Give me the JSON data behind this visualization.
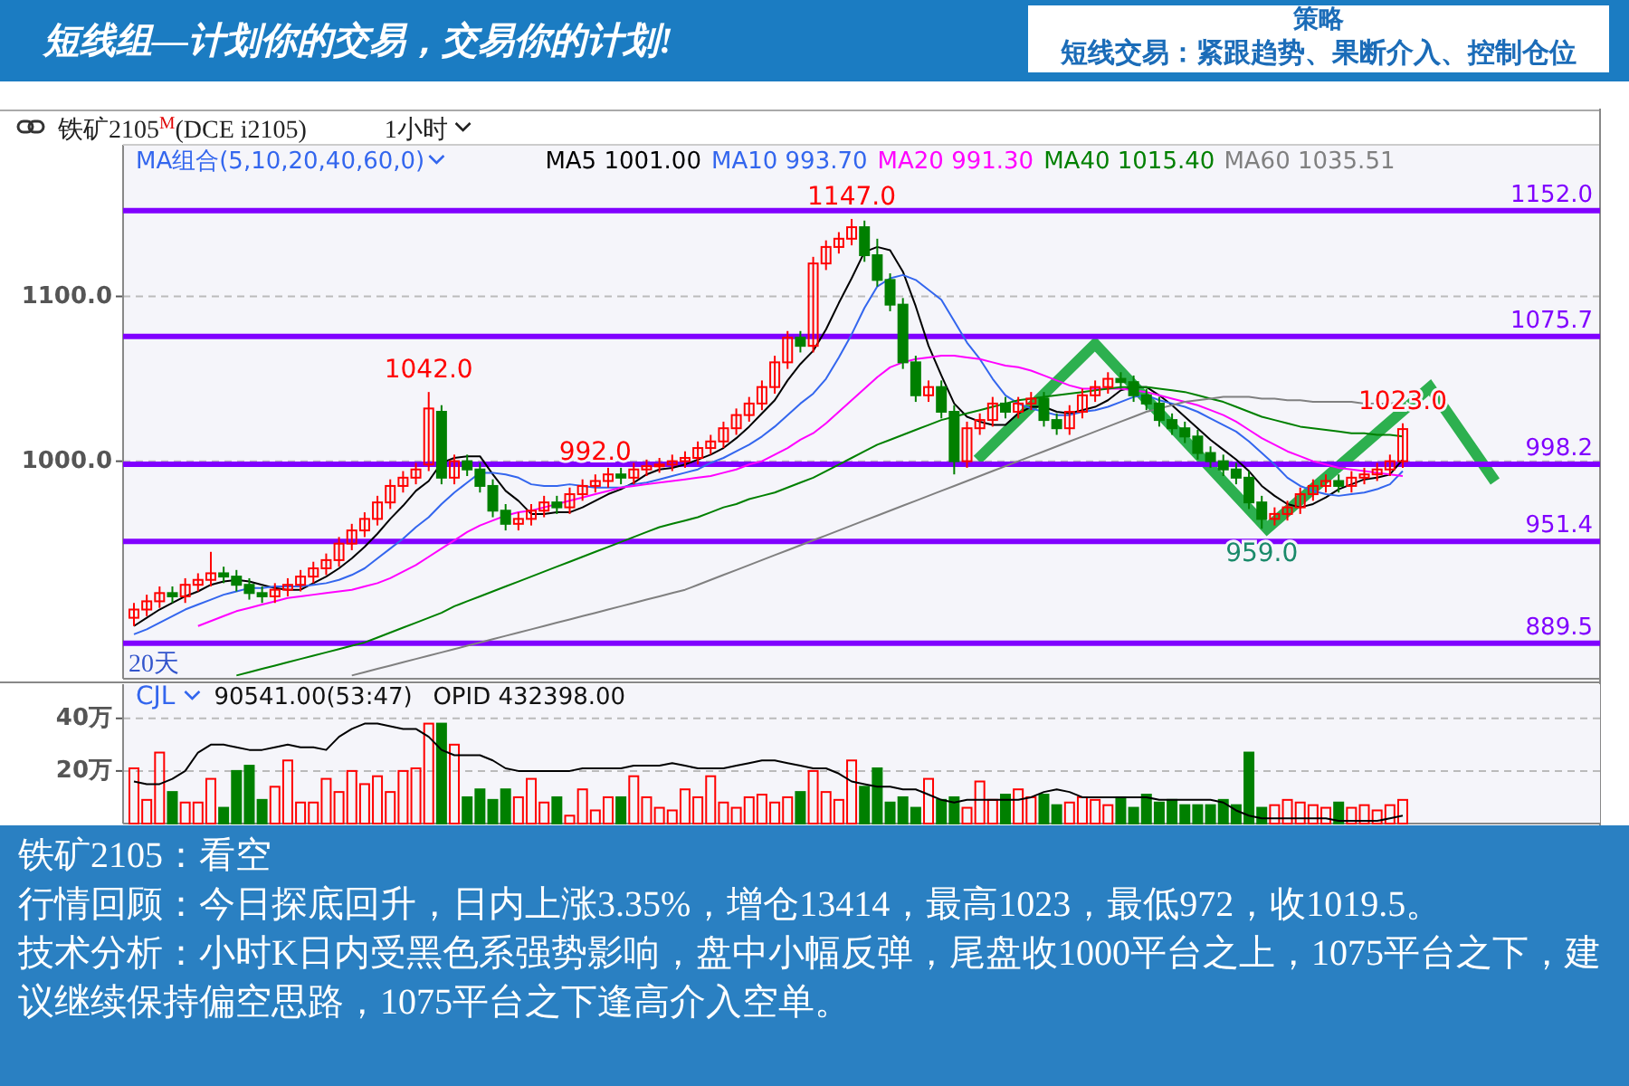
{
  "chart_data": [
    {
      "type": "other",
      "title": "短线组—计划你的交易，交易你的计划!",
      "annotations": [
        "策略",
        "短线交易：紧跟趋势、果断介入、控制仓位"
      ]
    },
    {
      "type": "candlestick",
      "title": "铁矿2105$^{M}$(DCE i2105)",
      "subtitle": "1小时",
      "legend": "top",
      "legend_title": "MA组合(5,10,20,40,60,0)",
      "grid": "y",
      "ylim": [
        868,
        1192
      ],
      "yticks": [
        {
          "value": 1000,
          "label": "1000.0"
        },
        {
          "value": 1100,
          "label": "1100.0"
        }
      ],
      "categories": [
        null,
        null,
        null,
        null,
        null,
        null,
        null,
        null,
        null,
        null,
        null,
        null,
        null,
        null,
        null,
        null,
        null,
        null,
        null,
        null,
        null,
        null,
        null,
        null,
        null,
        null,
        null,
        null,
        null,
        null,
        null,
        null,
        null,
        null,
        null,
        null,
        null,
        null,
        null,
        null,
        null,
        null,
        null,
        null,
        null,
        null,
        null,
        null,
        null,
        null,
        null,
        null,
        null,
        null,
        null,
        null,
        null,
        null,
        null,
        null,
        null,
        null,
        null,
        null,
        null,
        null,
        null,
        null,
        null,
        null,
        null,
        null,
        null,
        null,
        null,
        null,
        null,
        null,
        null,
        null,
        null,
        null,
        null,
        null,
        null,
        null,
        null,
        null,
        null,
        null,
        null,
        null,
        null,
        null,
        null,
        null,
        null,
        null,
        null,
        null
      ],
      "ohlc": [
        [
          905,
          914,
          900,
          910
        ],
        [
          910,
          919,
          906,
          915
        ],
        [
          915,
          924,
          911,
          920
        ],
        [
          920,
          924,
          914,
          918
        ],
        [
          918,
          929,
          914,
          925
        ],
        [
          925,
          932,
          921,
          928
        ],
        [
          928,
          945,
          924,
          932
        ],
        [
          932,
          936,
          926,
          930
        ],
        [
          930,
          934,
          921,
          925
        ],
        [
          925,
          929,
          916,
          920
        ],
        [
          920,
          924,
          914,
          918
        ],
        [
          918,
          926,
          914,
          922
        ],
        [
          922,
          929,
          918,
          925
        ],
        [
          925,
          934,
          921,
          930
        ],
        [
          930,
          939,
          926,
          935
        ],
        [
          935,
          944,
          931,
          940
        ],
        [
          940,
          954,
          936,
          950
        ],
        [
          950,
          962,
          946,
          958
        ],
        [
          958,
          969,
          954,
          965
        ],
        [
          965,
          979,
          961,
          975
        ],
        [
          975,
          989,
          971,
          985
        ],
        [
          985,
          994,
          981,
          990
        ],
        [
          990,
          999,
          986,
          995
        ],
        [
          998,
          1042,
          994,
          1032
        ],
        [
          1030,
          1034,
          986,
          990
        ],
        [
          990,
          1004,
          986,
          1000
        ],
        [
          1000,
          1004,
          991,
          995
        ],
        [
          995,
          999,
          981,
          985
        ],
        [
          985,
          989,
          966,
          970
        ],
        [
          970,
          974,
          958,
          962
        ],
        [
          962,
          969,
          958,
          965
        ],
        [
          965,
          974,
          961,
          970
        ],
        [
          970,
          979,
          966,
          975
        ],
        [
          975,
          979,
          968,
          972
        ],
        [
          972,
          984,
          968,
          980
        ],
        [
          980,
          989,
          976,
          985
        ],
        [
          985,
          992,
          981,
          988
        ],
        [
          988,
          996,
          984,
          992
        ],
        [
          992,
          996,
          986,
          990
        ],
        [
          990,
          999,
          986,
          995
        ],
        [
          995,
          1001,
          991,
          997
        ],
        [
          997,
          1002,
          993,
          998
        ],
        [
          998,
          1004,
          994,
          1000
        ],
        [
          1000,
          1006,
          996,
          1002
        ],
        [
          1002,
          1012,
          998,
          1008
        ],
        [
          1008,
          1016,
          1004,
          1012
        ],
        [
          1012,
          1024,
          1008,
          1020
        ],
        [
          1020,
          1032,
          1016,
          1028
        ],
        [
          1028,
          1039,
          1024,
          1035
        ],
        [
          1035,
          1049,
          1031,
          1045
        ],
        [
          1045,
          1064,
          1041,
          1060
        ],
        [
          1060,
          1079,
          1056,
          1075
        ],
        [
          1075,
          1079,
          1066,
          1070
        ],
        [
          1070,
          1124,
          1066,
          1120
        ],
        [
          1120,
          1134,
          1116,
          1130
        ],
        [
          1130,
          1139,
          1126,
          1135
        ],
        [
          1135,
          1147,
          1131,
          1142
        ],
        [
          1142,
          1146,
          1121,
          1125
        ],
        [
          1125,
          1135,
          1106,
          1110
        ],
        [
          1110,
          1114,
          1091,
          1095
        ],
        [
          1095,
          1099,
          1056,
          1060
        ],
        [
          1060,
          1064,
          1036,
          1040
        ],
        [
          1040,
          1049,
          1036,
          1045
        ],
        [
          1045,
          1049,
          1026,
          1030
        ],
        [
          1030,
          1034,
          992,
          1000
        ],
        [
          1000,
          1024,
          996,
          1020
        ],
        [
          1020,
          1029,
          1016,
          1025
        ],
        [
          1025,
          1039,
          1021,
          1035
        ],
        [
          1035,
          1039,
          1026,
          1030
        ],
        [
          1030,
          1039,
          1026,
          1035
        ],
        [
          1035,
          1042,
          1031,
          1038
        ],
        [
          1038,
          1042,
          1021,
          1025
        ],
        [
          1025,
          1029,
          1016,
          1020
        ],
        [
          1020,
          1034,
          1016,
          1030
        ],
        [
          1030,
          1044,
          1026,
          1040
        ],
        [
          1040,
          1049,
          1036,
          1045
        ],
        [
          1045,
          1054,
          1041,
          1050
        ],
        [
          1050,
          1054,
          1044,
          1048
        ],
        [
          1048,
          1052,
          1036,
          1040
        ],
        [
          1040,
          1044,
          1031,
          1035
        ],
        [
          1035,
          1039,
          1021,
          1025
        ],
        [
          1025,
          1029,
          1016,
          1020
        ],
        [
          1020,
          1024,
          1011,
          1015
        ],
        [
          1015,
          1019,
          1001,
          1005
        ],
        [
          1005,
          1009,
          996,
          1000
        ],
        [
          1000,
          1004,
          991,
          995
        ],
        [
          995,
          999,
          986,
          990
        ],
        [
          990,
          994,
          971,
          975
        ],
        [
          975,
          979,
          959,
          965
        ],
        [
          965,
          972,
          961,
          968
        ],
        [
          968,
          976,
          964,
          972
        ],
        [
          972,
          984,
          968,
          980
        ],
        [
          980,
          989,
          976,
          985
        ],
        [
          985,
          992,
          981,
          988
        ],
        [
          988,
          992,
          981,
          985
        ],
        [
          985,
          994,
          981,
          990
        ],
        [
          990,
          996,
          986,
          992
        ],
        [
          992,
          999,
          988,
          995
        ],
        [
          995,
          1004,
          991,
          1000
        ],
        [
          1000,
          1023,
          996,
          1019.5
        ]
      ],
      "colors": [
        "#ff0000",
        "#ff0000",
        "#ff0000",
        "#008000",
        "#ff0000",
        "#ff0000",
        "#ff0000",
        "#008000",
        "#008000",
        "#008000",
        "#008000",
        "#ff0000",
        "#ff0000",
        "#ff0000",
        "#ff0000",
        "#ff0000",
        "#ff0000",
        "#ff0000",
        "#ff0000",
        "#ff0000",
        "#ff0000",
        "#ff0000",
        "#ff0000",
        "#ff0000",
        "#008000",
        "#ff0000",
        "#008000",
        "#008000",
        "#008000",
        "#008000",
        "#ff0000",
        "#ff0000",
        "#ff0000",
        "#008000",
        "#ff0000",
        "#ff0000",
        "#ff0000",
        "#ff0000",
        "#008000",
        "#ff0000",
        "#ff0000",
        "#ff0000",
        "#ff0000",
        "#ff0000",
        "#ff0000",
        "#ff0000",
        "#ff0000",
        "#ff0000",
        "#ff0000",
        "#ff0000",
        "#ff0000",
        "#ff0000",
        "#008000",
        "#ff0000",
        "#ff0000",
        "#ff0000",
        "#ff0000",
        "#008000",
        "#008000",
        "#008000",
        "#008000",
        "#008000",
        "#ff0000",
        "#008000",
        "#008000",
        "#ff0000",
        "#ff0000",
        "#ff0000",
        "#008000",
        "#ff0000",
        "#ff0000",
        "#008000",
        "#008000",
        "#ff0000",
        "#ff0000",
        "#ff0000",
        "#ff0000",
        "#008000",
        "#008000",
        "#008000",
        "#008000",
        "#008000",
        "#008000",
        "#008000",
        "#008000",
        "#008000",
        "#008000",
        "#008000",
        "#008000",
        "#ff0000",
        "#ff0000",
        "#ff0000",
        "#ff0000",
        "#ff0000",
        "#008000",
        "#ff0000",
        "#ff0000",
        "#ff0000",
        "#ff0000",
        "#ff0000"
      ],
      "series": [
        {
          "type": "line",
          "name": "MA5 1001.00",
          "color": "#000000",
          "values": [
            900,
            905,
            910,
            914,
            918,
            921,
            925,
            927,
            928,
            927,
            925,
            923,
            922,
            922,
            926,
            930,
            935,
            941,
            948,
            956,
            965,
            973,
            982,
            988,
            999,
            1002,
            1003,
            1003,
            992,
            982,
            976,
            968,
            968,
            969,
            969,
            972,
            976,
            980,
            983,
            987,
            992,
            995,
            996,
            998,
            1001,
            1004,
            1008,
            1014,
            1021,
            1029,
            1037,
            1049,
            1059,
            1067,
            1080,
            1096,
            1111,
            1127,
            1130,
            1128,
            1115,
            1094,
            1070,
            1052,
            1035,
            1027,
            1024,
            1022,
            1022,
            1029,
            1033,
            1033,
            1030,
            1029,
            1031,
            1033,
            1037,
            1043,
            1045,
            1045,
            1040,
            1034,
            1027,
            1020,
            1013,
            1007,
            1001,
            994,
            985,
            979,
            974,
            972,
            974,
            978,
            983,
            986,
            989,
            990,
            992,
            1001
          ]
        },
        {
          "type": "line",
          "name": "MA10 993.70",
          "color": "#3366ee",
          "values": [
            895,
            898,
            902,
            906,
            910,
            913,
            916,
            919,
            921,
            923,
            923,
            924,
            924,
            924,
            925,
            926,
            928,
            931,
            935,
            941,
            947,
            953,
            960,
            966,
            974,
            981,
            987,
            993,
            993,
            992,
            990,
            986,
            985,
            985,
            986,
            985,
            984,
            984,
            984,
            986,
            987,
            989,
            991,
            993,
            995,
            999,
            1002,
            1006,
            1010,
            1015,
            1021,
            1028,
            1035,
            1041,
            1050,
            1063,
            1077,
            1093,
            1106,
            1111,
            1113,
            1110,
            1104,
            1098,
            1085,
            1072,
            1062,
            1050,
            1040,
            1035,
            1032,
            1030,
            1028,
            1028,
            1030,
            1031,
            1033,
            1036,
            1039,
            1040,
            1037,
            1035,
            1033,
            1030,
            1026,
            1022,
            1018,
            1012,
            1005,
            998,
            990,
            985,
            982,
            980,
            979,
            980,
            981,
            983,
            986,
            994
          ]
        },
        {
          "type": "line",
          "name": "MA20 991.30",
          "color": "#ff00ff",
          "values": [
            null,
            null,
            null,
            null,
            null,
            900,
            903,
            906,
            909,
            911,
            913,
            915,
            917,
            918,
            919,
            920,
            921,
            922,
            924,
            926,
            929,
            933,
            937,
            942,
            947,
            952,
            957,
            961,
            964,
            967,
            969,
            970,
            972,
            974,
            976,
            978,
            980,
            982,
            984,
            985,
            986,
            987,
            988,
            989,
            990,
            991,
            993,
            995,
            998,
            1000,
            1004,
            1008,
            1013,
            1017,
            1023,
            1030,
            1037,
            1044,
            1051,
            1057,
            1060,
            1062,
            1063,
            1064,
            1064,
            1063,
            1062,
            1060,
            1058,
            1057,
            1055,
            1052,
            1049,
            1046,
            1044,
            1044,
            1044,
            1044,
            1043,
            1042,
            1040,
            1038,
            1036,
            1034,
            1031,
            1028,
            1024,
            1019,
            1014,
            1010,
            1006,
            1003,
            1000,
            998,
            996,
            995,
            994,
            993,
            992,
            991
          ]
        },
        {
          "type": "line",
          "name": "MA40 1015.40",
          "color": "#008000",
          "values": [
            null,
            null,
            null,
            null,
            null,
            null,
            null,
            null,
            870,
            872,
            874,
            876,
            878,
            880,
            882,
            884,
            886,
            888,
            890,
            893,
            896,
            899,
            902,
            905,
            908,
            912,
            915,
            918,
            921,
            924,
            927,
            930,
            933,
            936,
            939,
            942,
            945,
            948,
            951,
            954,
            957,
            960,
            962,
            964,
            966,
            969,
            972,
            974,
            977,
            979,
            981,
            984,
            987,
            990,
            994,
            998,
            1002,
            1006,
            1010,
            1013,
            1016,
            1019,
            1022,
            1025,
            1027,
            1029,
            1031,
            1033,
            1035,
            1037,
            1038,
            1039,
            1040,
            1041,
            1042,
            1043,
            1044,
            1045,
            1045,
            1045,
            1044,
            1043,
            1042,
            1040,
            1038,
            1036,
            1033,
            1030,
            1027,
            1025,
            1023,
            1021,
            1020,
            1019,
            1018,
            1017,
            1017,
            1016,
            1016,
            1015
          ]
        },
        {
          "type": "line",
          "name": "MA60 1035.51",
          "color": "#808080",
          "values": [
            null,
            null,
            null,
            null,
            null,
            null,
            null,
            null,
            null,
            null,
            null,
            null,
            null,
            null,
            null,
            null,
            null,
            870,
            872,
            874,
            876,
            878,
            880,
            882,
            884,
            886,
            888,
            890,
            892,
            894,
            896,
            898,
            900,
            902,
            904,
            906,
            908,
            910,
            912,
            914,
            916,
            918,
            920,
            922,
            925,
            928,
            931,
            934,
            937,
            940,
            943,
            946,
            949,
            952,
            955,
            958,
            961,
            964,
            967,
            970,
            973,
            976,
            979,
            982,
            985,
            988,
            991,
            994,
            997,
            1000,
            1003,
            1006,
            1009,
            1012,
            1015,
            1018,
            1021,
            1024,
            1027,
            1030,
            1032,
            1034,
            1036,
            1037,
            1038,
            1039,
            1039,
            1039,
            1038,
            1038,
            1037,
            1037,
            1036,
            1036,
            1036,
            1036,
            1035,
            1035,
            1035,
            1036
          ]
        }
      ],
      "ref_lines": [
        {
          "axis": "y",
          "value": 1152,
          "label": "1152.0",
          "color": "#8000ff"
        },
        {
          "axis": "y",
          "value": 1075.7,
          "label": "1075.7",
          "color": "#8000ff"
        },
        {
          "axis": "y",
          "value": 998.2,
          "label": "998.2",
          "color": "#8000ff"
        },
        {
          "axis": "y",
          "value": 951.4,
          "label": "951.4",
          "color": "#8000ff"
        },
        {
          "axis": "y",
          "value": 889.5,
          "label": "889.5",
          "color": "#8000ff"
        }
      ],
      "annotations": [
        {
          "text": "1147.0",
          "y": 1147
        },
        {
          "text": "1042.0",
          "y": 1042
        },
        {
          "text": "992.0",
          "y": 992
        },
        {
          "text": "959.0",
          "y": 959
        },
        {
          "text": "1023.0",
          "y": 1023
        },
        "20天"
      ]
    },
    {
      "type": "bar",
      "title": "CJL",
      "annotations": [
        "90541.00(53:47)",
        "OPID 432398.00"
      ],
      "grid": "y",
      "ylim": [
        0,
        53
      ],
      "yticks": [
        {
          "value": 20,
          "label": "20万"
        },
        {
          "value": 40,
          "label": "40万"
        }
      ],
      "categories": [
        null,
        null,
        null,
        null,
        null,
        null,
        null,
        null,
        null,
        null,
        null,
        null,
        null,
        null,
        null,
        null,
        null,
        null,
        null,
        null,
        null,
        null,
        null,
        null,
        null,
        null,
        null,
        null,
        null,
        null,
        null,
        null,
        null,
        null,
        null,
        null,
        null,
        null,
        null,
        null,
        null,
        null,
        null,
        null,
        null,
        null,
        null,
        null,
        null,
        null,
        null,
        null,
        null,
        null,
        null,
        null,
        null,
        null,
        null,
        null,
        null,
        null,
        null,
        null,
        null,
        null,
        null,
        null,
        null,
        null,
        null,
        null,
        null,
        null,
        null,
        null,
        null,
        null,
        null,
        null,
        null,
        null,
        null,
        null,
        null,
        null,
        null,
        null,
        null,
        null,
        null,
        null,
        null,
        null,
        null,
        null,
        null,
        null,
        null,
        null
      ],
      "series": [
        {
          "type": "bar",
          "colors": [
            "#ff0000",
            "#ff0000",
            "#ff0000",
            "#008000",
            "#ff0000",
            "#ff0000",
            "#ff0000",
            "#008000",
            "#008000",
            "#008000",
            "#008000",
            "#ff0000",
            "#ff0000",
            "#ff0000",
            "#ff0000",
            "#ff0000",
            "#ff0000",
            "#ff0000",
            "#ff0000",
            "#ff0000",
            "#ff0000",
            "#ff0000",
            "#ff0000",
            "#ff0000",
            "#008000",
            "#ff0000",
            "#008000",
            "#008000",
            "#008000",
            "#008000",
            "#ff0000",
            "#ff0000",
            "#ff0000",
            "#008000",
            "#ff0000",
            "#ff0000",
            "#ff0000",
            "#ff0000",
            "#008000",
            "#ff0000",
            "#ff0000",
            "#ff0000",
            "#ff0000",
            "#ff0000",
            "#ff0000",
            "#ff0000",
            "#ff0000",
            "#ff0000",
            "#ff0000",
            "#ff0000",
            "#ff0000",
            "#ff0000",
            "#008000",
            "#ff0000",
            "#ff0000",
            "#ff0000",
            "#ff0000",
            "#008000",
            "#008000",
            "#008000",
            "#008000",
            "#008000",
            "#ff0000",
            "#008000",
            "#008000",
            "#ff0000",
            "#ff0000",
            "#ff0000",
            "#008000",
            "#ff0000",
            "#ff0000",
            "#008000",
            "#008000",
            "#ff0000",
            "#ff0000",
            "#ff0000",
            "#ff0000",
            "#008000",
            "#008000",
            "#008000",
            "#008000",
            "#008000",
            "#008000",
            "#008000",
            "#008000",
            "#008000",
            "#008000",
            "#008000",
            "#008000",
            "#ff0000",
            "#ff0000",
            "#ff0000",
            "#ff0000",
            "#ff0000",
            "#008000",
            "#ff0000",
            "#ff0000",
            "#ff0000",
            "#ff0000",
            "#ff0000"
          ],
          "values": [
            21,
            9,
            27,
            12,
            8,
            8,
            17,
            6,
            20,
            22,
            9,
            14,
            24,
            8,
            8,
            17,
            12,
            20,
            15,
            18,
            12,
            20,
            21,
            38,
            38,
            30,
            10,
            13,
            9,
            13,
            10,
            17,
            8,
            10,
            3,
            13,
            5,
            10,
            10,
            18,
            10,
            6,
            5,
            13,
            10,
            18,
            8,
            6,
            10,
            11,
            8,
            10,
            12,
            20,
            12,
            9,
            24,
            14,
            21,
            8,
            10,
            6,
            17,
            9,
            10,
            6,
            16,
            9,
            11,
            13,
            10,
            11,
            7,
            8,
            10,
            9,
            7,
            10,
            6,
            11,
            8,
            9,
            7,
            7,
            7,
            9,
            7,
            27,
            6,
            7,
            9,
            8,
            7,
            6,
            8,
            6,
            7,
            5,
            7,
            9
          ]
        },
        {
          "type": "line",
          "color": "#000000",
          "values": [
            16,
            15,
            15,
            17,
            20,
            27,
            30,
            30,
            29,
            28,
            28,
            29,
            30,
            29,
            29,
            28,
            33,
            36,
            38,
            38,
            37,
            36,
            36,
            33,
            28,
            26,
            26,
            26,
            24,
            21,
            20,
            20,
            20,
            20,
            20,
            21,
            21,
            21,
            21,
            22,
            22,
            22,
            23,
            22,
            21,
            21,
            21,
            22,
            23,
            24,
            24,
            23,
            22,
            21,
            21,
            19,
            16,
            15,
            14,
            14,
            13,
            13,
            11,
            9,
            8,
            9,
            9,
            9,
            9,
            9,
            10,
            12,
            13,
            12,
            10,
            10,
            10,
            10,
            10,
            10,
            9,
            9,
            9,
            9,
            9,
            8,
            5,
            3,
            2,
            2,
            2,
            2,
            2,
            2,
            1,
            1,
            1,
            1,
            2,
            3
          ]
        }
      ]
    },
    {
      "type": "other",
      "title": "铁矿2105：看空",
      "annotations": [
        "行情回顾：今日探底回升，日内上涨3.35%，增仓13414，最高1023，最低972，收1019.5。",
        "技术分析：小时K日内受黑色系强势影响，盘中小幅反弹，尾盘收1000平台之上，1075平台之下，建议继续保持偏空思路，1075平台之下逢高介入空单。"
      ]
    }
  ]
}
